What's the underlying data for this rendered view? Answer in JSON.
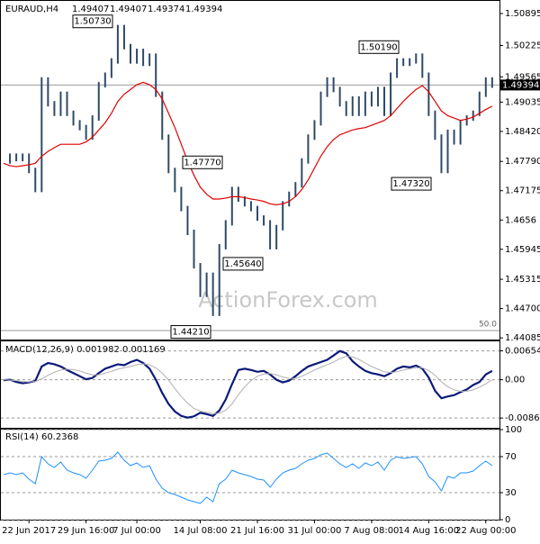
{
  "chart_data": {
    "type": "price",
    "symbol": "EURAUD,H4",
    "ohlc": [
      1.49407,
      1.49407,
      1.49374,
      1.49394
    ],
    "watermark": "ActionForex.com",
    "ylim": [
      1.4405,
      1.5116
    ],
    "yticks": [
      1.50895,
      1.50225,
      1.49565,
      1.49035,
      {
        "value": 1.4842,
        "label": "1.48420"
      },
      {
        "value": 1.4779,
        "label": "1.47790"
      },
      1.47175,
      1.4656,
      1.45945,
      1.45315,
      {
        "value": 1.447,
        "label": "1.44700"
      },
      1.44085
    ],
    "last_price": 1.49394,
    "level_line": 1.4424,
    "level_label": "50.0",
    "xticks": [
      {
        "value": 4,
        "label": "22 Jun 2017"
      },
      {
        "value": 13,
        "label": "29 Jun 16:00"
      },
      {
        "value": 21,
        "label": "7 Jul 00:00"
      },
      {
        "value": 31,
        "label": "14 Jul 08:00"
      },
      {
        "value": 40,
        "label": "21 Jul 16:00"
      },
      {
        "value": 49,
        "label": "31 Jul 00:00"
      },
      {
        "value": 58,
        "label": "7 Aug 08:00"
      },
      {
        "value": 67,
        "label": "14 Aug 16:00"
      },
      {
        "value": 76,
        "label": "22 Aug 00:00"
      }
    ],
    "annotations": [
      {
        "value": 1.5073,
        "label": "1.50730"
      },
      {
        "value": 1.5019,
        "label": "1.50190"
      },
      {
        "value": 1.4777,
        "label": "1.47770"
      },
      {
        "value": 1.4732,
        "label": "1.47320"
      },
      {
        "value": 1.4564,
        "label": "1.45640"
      },
      {
        "value": 1.4421,
        "label": "1.44210"
      }
    ],
    "series": [
      {
        "color": "#2f4a66",
        "values": [
          1.478,
          1.479,
          1.4785,
          1.479,
          1.476,
          1.472,
          1.495,
          1.49,
          1.488,
          1.492,
          1.488,
          1.486,
          1.485,
          1.483,
          1.487,
          1.494,
          1.496,
          1.499,
          1.506,
          1.502,
          1.499,
          1.501,
          1.4985,
          1.5,
          1.492,
          1.483,
          1.476,
          1.472,
          1.468,
          1.463,
          1.456,
          1.45,
          1.454,
          1.446,
          1.46,
          1.465,
          1.472,
          1.47,
          1.469,
          1.468,
          1.466,
          1.465,
          1.46,
          1.464,
          1.469,
          1.471,
          1.473,
          1.478,
          1.483,
          1.486,
          1.492,
          1.495,
          1.493,
          1.49,
          1.488,
          1.491,
          1.488,
          1.492,
          1.49,
          1.493,
          1.488,
          1.496,
          1.499,
          1.4985,
          1.499,
          1.5,
          1.496,
          1.488,
          1.483,
          1.476,
          1.484,
          1.482,
          1.486,
          1.487,
          1.488,
          1.492,
          1.495,
          1.4939
        ]
      },
      {
        "color": "#e00000",
        "values": [
          1.4775,
          1.477,
          1.4768,
          1.477,
          1.4772,
          1.4775,
          1.479,
          1.48,
          1.4808,
          1.4815,
          1.4815,
          1.4815,
          1.4815,
          1.482,
          1.483,
          1.4845,
          1.486,
          1.488,
          1.4905,
          1.492,
          1.493,
          1.494,
          1.4945,
          1.494,
          1.493,
          1.491,
          1.488,
          1.485,
          1.4815,
          1.478,
          1.475,
          1.4725,
          1.471,
          1.47,
          1.47,
          1.4702,
          1.4705,
          1.4705,
          1.4703,
          1.47,
          1.4698,
          1.4695,
          1.469,
          1.4688,
          1.469,
          1.4695,
          1.4705,
          1.472,
          1.474,
          1.4765,
          1.479,
          1.481,
          1.4825,
          1.4835,
          1.484,
          1.4845,
          1.4848,
          1.485,
          1.4855,
          1.486,
          1.4865,
          1.4875,
          1.489,
          1.4905,
          1.4918,
          1.493,
          1.4938,
          1.4925,
          1.4905,
          1.4885,
          1.4875,
          1.487,
          1.4865,
          1.4868,
          1.4872,
          1.488,
          1.4888,
          1.4895
        ]
      }
    ],
    "macd": {
      "title": "MACD(12,26,9) 0.001982 0.001169",
      "ylim": [
        -0.0109,
        0.0087
      ],
      "yticks": [
        0.006542,
        {
          "value": 0,
          "label": "0.00"
        },
        -0.008684
      ],
      "series": [
        {
          "color": "#0a1a7a",
          "values": [
            -0.0001,
            0,
            -0.0005,
            -0.0008,
            -0.0006,
            -0.0003,
            0.003,
            0.0038,
            0.0035,
            0.003,
            0.0022,
            0.0015,
            0.0008,
            0.0001,
            0.0004,
            0.0015,
            0.0025,
            0.003,
            0.0035,
            0.0033,
            0.004,
            0.0045,
            0.0038,
            0.0025,
            0,
            -0.003,
            -0.0055,
            -0.0072,
            -0.0082,
            -0.0086,
            -0.0083,
            -0.0075,
            -0.0078,
            -0.0082,
            -0.007,
            -0.0045,
            -0.001,
            0.0022,
            0.0025,
            0.0022,
            0.0018,
            0.002,
            0.0012,
            0,
            -0.0006,
            -0.0002,
            0.0008,
            0.002,
            0.003,
            0.0035,
            0.004,
            0.0045,
            0.0055,
            0.0065,
            0.006,
            0.0042,
            0.003,
            0.002,
            0.0015,
            0.0012,
            0.0008,
            0.0015,
            0.0025,
            0.003,
            0.0028,
            0.0032,
            0.0025,
            0.0005,
            -0.0025,
            -0.0042,
            -0.0038,
            -0.0035,
            -0.0028,
            -0.0022,
            -0.0012,
            -0.0005,
            0.0012,
            0.002
          ]
        },
        {
          "color": "#b0b0b0",
          "values": [
            0,
            -0.0001,
            -0.0002,
            -0.0004,
            -0.0005,
            -0.0004,
            0.0002,
            0.001,
            0.0017,
            0.0022,
            0.0024,
            0.0023,
            0.002,
            0.0015,
            0.0011,
            0.0011,
            0.0015,
            0.0019,
            0.0024,
            0.0027,
            0.003,
            0.0034,
            0.0036,
            0.0034,
            0.0027,
            0.0015,
            -0.0001,
            -0.002,
            -0.0038,
            -0.0053,
            -0.0065,
            -0.0071,
            -0.0074,
            -0.0077,
            -0.0076,
            -0.0069,
            -0.0055,
            -0.0034,
            -0.0016,
            -0.0002,
            0.0008,
            0.0013,
            0.0014,
            0.0011,
            0.0006,
            0.0003,
            0.0003,
            0.0008,
            0.0015,
            0.0022,
            0.0028,
            0.0034,
            0.004,
            0.0048,
            0.0053,
            0.0052,
            0.0046,
            0.0038,
            0.003,
            0.0024,
            0.0018,
            0.0016,
            0.0018,
            0.0022,
            0.0025,
            0.0027,
            0.0027,
            0.0021,
            0.001,
            -0.0005,
            -0.0016,
            -0.0023,
            -0.0026,
            -0.0026,
            -0.0023,
            -0.0017,
            -0.0009,
            0
          ]
        }
      ]
    },
    "rsi": {
      "title": "RSI(14) 60.2368",
      "ylim": [
        0,
        100
      ],
      "yticks": [
        100,
        70,
        30,
        0
      ],
      "color": "#1e90ff",
      "values": [
        50,
        52,
        50,
        52,
        45,
        40,
        70,
        62,
        58,
        64,
        55,
        52,
        50,
        46,
        55,
        65,
        66,
        68,
        75,
        66,
        60,
        63,
        58,
        60,
        45,
        35,
        30,
        28,
        25,
        22,
        20,
        18,
        25,
        20,
        40,
        45,
        55,
        52,
        50,
        48,
        45,
        44,
        36,
        45,
        52,
        55,
        57,
        62,
        66,
        68,
        72,
        74,
        68,
        62,
        58,
        62,
        57,
        63,
        60,
        64,
        55,
        66,
        70,
        68,
        69,
        70,
        62,
        48,
        42,
        32,
        48,
        46,
        52,
        52,
        54,
        60,
        65,
        60
      ]
    }
  }
}
